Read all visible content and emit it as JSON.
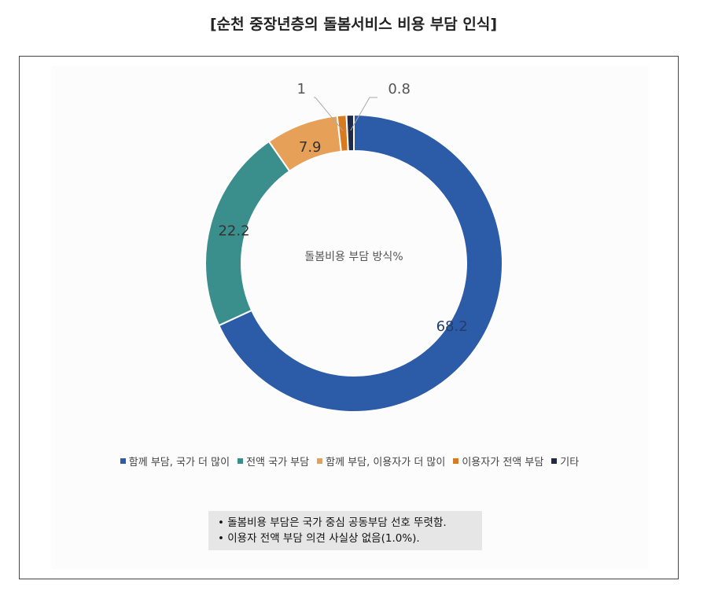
{
  "title": "[순천 중장년층의 돌봄서비스 비용 부담 인식]",
  "chart_data": {
    "type": "donut",
    "center_label": "돌봄비용 부담 방식%",
    "series": [
      {
        "name": "함께 부담, 국가 더 많이",
        "value": 68.2,
        "color": "#2C5BA8"
      },
      {
        "name": "전액 국가 부담",
        "value": 22.2,
        "color": "#3A8F8C"
      },
      {
        "name": "함께 부담, 이용자가 더 많이",
        "value": 7.9,
        "color": "#E6A058"
      },
      {
        "name": "이용자가 전액 부담",
        "value": 1,
        "color": "#D87A20"
      },
      {
        "name": "기타",
        "value": 0.8,
        "color": "#1E2A48"
      }
    ],
    "labels": [
      "68.2",
      "22.2",
      "7.9",
      "1",
      "0.8"
    ],
    "legend_position": "bottom"
  },
  "notes": [
    "• 돌봄비용 부담은 국가 중심 공동부담 선호 뚜렷함.",
    "• 이용자 전액 부담 의견 사실상 없음(1.0%)."
  ]
}
